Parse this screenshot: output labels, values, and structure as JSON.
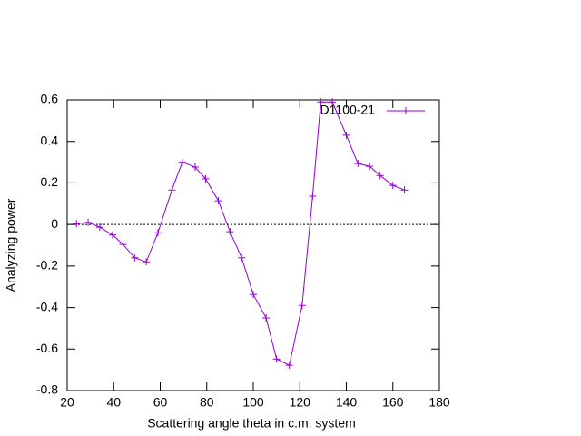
{
  "chart_data": {
    "type": "line",
    "xlabel": "Scattering angle theta in c.m. system",
    "ylabel": "Analyzing power",
    "x": [
      24,
      29,
      34,
      39.5,
      44,
      49,
      54,
      59,
      65,
      69.5,
      75,
      79.5,
      85,
      90,
      95,
      100,
      105.5,
      110,
      115.5,
      121,
      125.5,
      129,
      134,
      140,
      145,
      150,
      154.5,
      160,
      165
    ],
    "series": [
      {
        "name": "D1100-21",
        "color": "#9400d3",
        "values": [
          0.004,
          0.01,
          -0.013,
          -0.05,
          -0.096,
          -0.16,
          -0.18,
          -0.04,
          0.166,
          0.3,
          0.276,
          0.22,
          0.114,
          -0.035,
          -0.16,
          -0.337,
          -0.45,
          -0.648,
          -0.678,
          -0.39,
          0.136,
          0.59,
          0.59,
          0.43,
          0.293,
          0.28,
          0.236,
          0.188,
          0.166
        ]
      }
    ],
    "xlim": [
      20,
      180
    ],
    "xticks": [
      20,
      40,
      60,
      80,
      100,
      120,
      140,
      160,
      180
    ],
    "ylim": [
      -0.8,
      0.6
    ],
    "yticks": [
      -0.8,
      -0.6,
      -0.4,
      -0.2,
      0,
      0.2,
      0.4,
      0.6
    ],
    "zeroaxis": true,
    "legend": "top-right"
  }
}
